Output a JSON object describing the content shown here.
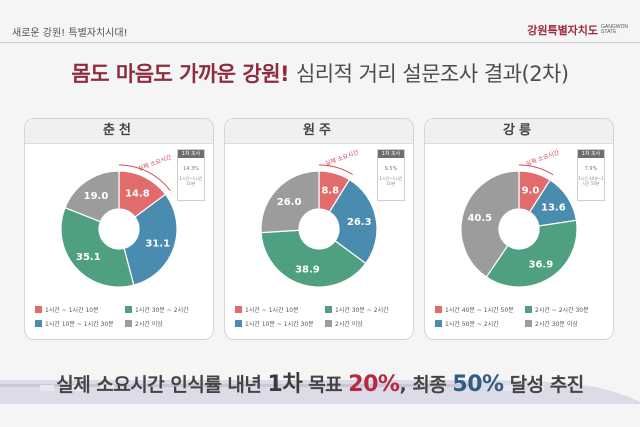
{
  "header": {
    "slogan": "새로운 강원! 특별자치시대!",
    "brand_kr": "강원특별자치도",
    "brand_en_1": "GANGWON",
    "brand_en_2": "STATE"
  },
  "title": {
    "part1": "몸도 마음도 가까운 강원!",
    "part2": "심리적 거리 설문조사 결과(2차)"
  },
  "colors": {
    "red": "#e26b6b",
    "blue": "#4a8cb0",
    "green": "#4fa080",
    "gray": "#9c9c9c"
  },
  "annotation": "실제 소요시간",
  "cards": [
    {
      "city": "춘천",
      "survey": {
        "head": "1차 조사",
        "value": "14.3%",
        "note": "1시간~1시간 10분"
      },
      "legend": [
        "1시간 ~ 1시간 10분",
        "1시간 30분 ~ 2시간",
        "1시간 10분 ~ 1시간 30분",
        "2시간 이상"
      ],
      "labels": [
        "14.8",
        "31.1",
        "35.1",
        "19.0"
      ]
    },
    {
      "city": "원주",
      "survey": {
        "head": "1차 조사",
        "value": "9.5%",
        "note": "1시간~1시간 10분"
      },
      "legend": [
        "1시간 ~ 1시간 10분",
        "1시간 30분 ~ 2시간",
        "1시간 10분 ~ 1시간 30분",
        "2시간 이상"
      ],
      "labels": [
        "8.8",
        "26.3",
        "38.9",
        "26.0"
      ]
    },
    {
      "city": "강릉",
      "survey": {
        "head": "1차 조사",
        "value": "7.9%",
        "note": "1시간 40분~1시간 50분"
      },
      "legend": [
        "1시간 40분 ~ 1시간 50분",
        "2시간 ~ 2시간 30분",
        "1시간 50분 ~ 2시간",
        "2시간 30분 이상"
      ],
      "labels": [
        "9.0",
        "13.6",
        "36.9",
        "40.5"
      ]
    }
  ],
  "chart_data": [
    {
      "type": "pie",
      "title": "춘천",
      "categories": [
        "1시간 ~ 1시간 10분",
        "1시간 10분 ~ 1시간 30분",
        "1시간 30분 ~ 2시간",
        "2시간 이상"
      ],
      "values": [
        14.8,
        31.1,
        35.1,
        19.0
      ]
    },
    {
      "type": "pie",
      "title": "원주",
      "categories": [
        "1시간 ~ 1시간 10분",
        "1시간 10분 ~ 1시간 30분",
        "1시간 30분 ~ 2시간",
        "2시간 이상"
      ],
      "values": [
        8.8,
        26.3,
        38.9,
        26.0
      ]
    },
    {
      "type": "pie",
      "title": "강릉",
      "categories": [
        "1시간 40분 ~ 1시간 50분",
        "1시간 50분 ~ 2시간",
        "2시간 ~ 2시간 30분",
        "2시간 30분 이상"
      ],
      "values": [
        9.0,
        13.6,
        36.9,
        40.5
      ]
    }
  ],
  "bottom": {
    "p1": "실제 소요시간 인식률 내년",
    "p2": "1차",
    "p3": "목표",
    "p4": "20%",
    "p5": ", 최종",
    "p6": "50%",
    "p7": "달성 추진"
  }
}
